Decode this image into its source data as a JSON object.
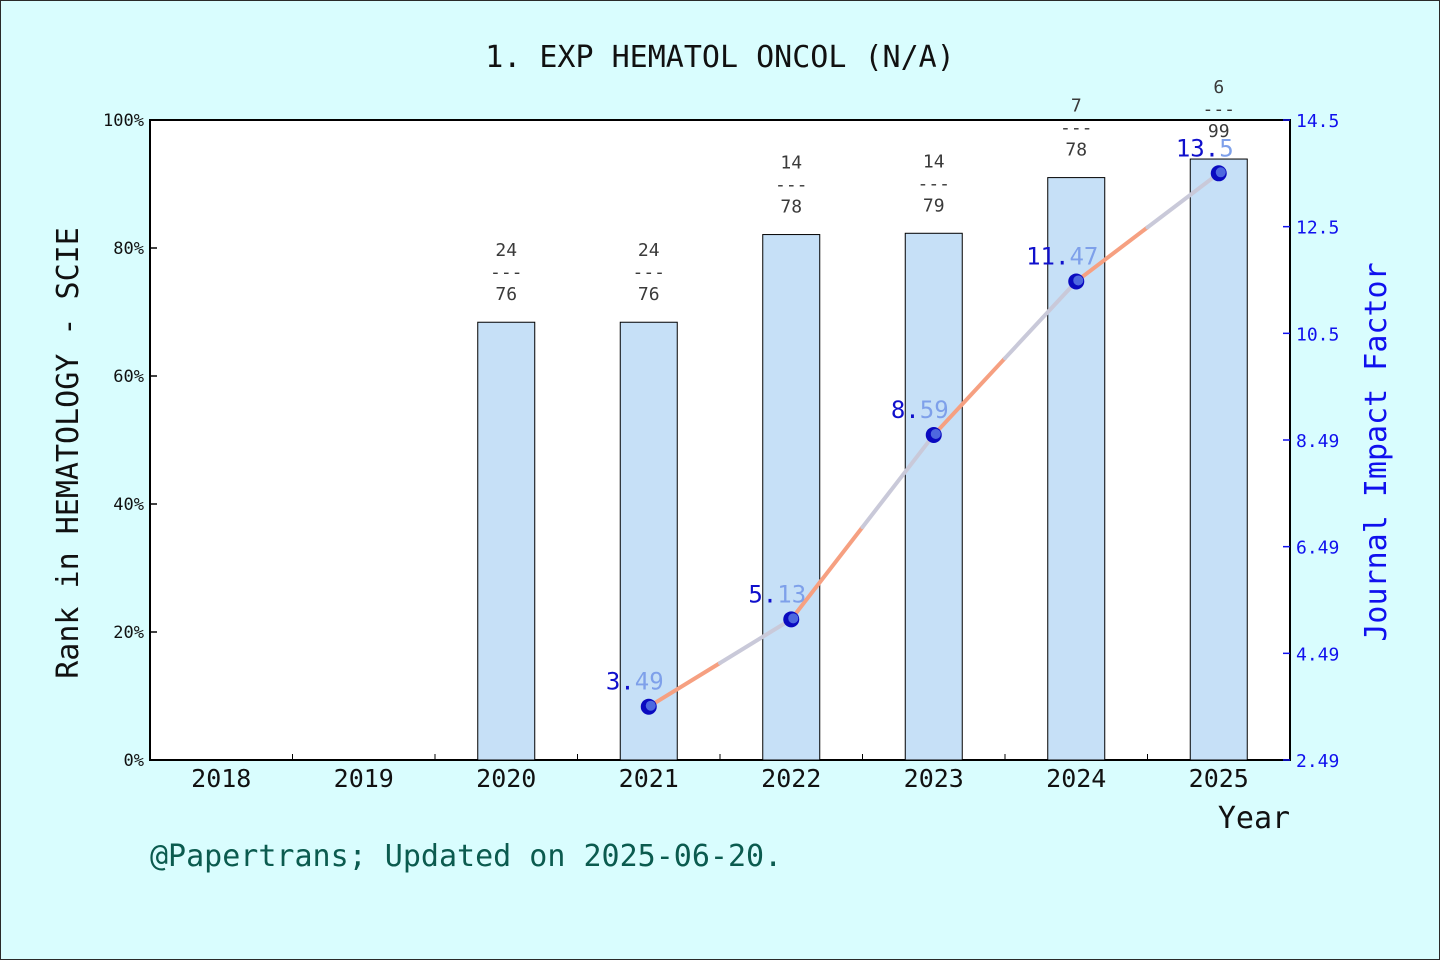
{
  "chart_data": {
    "type": "bar",
    "title": "1. EXP HEMATOL ONCOL (N/A)",
    "xlabel": "Year",
    "ylabel": "Rank in HEMATOLOGY - SCIE",
    "y2label": "Journal Impact Factor",
    "categories": [
      "2018",
      "2019",
      "2020",
      "2021",
      "2022",
      "2023",
      "2024",
      "2025"
    ],
    "ylim": [
      0,
      100
    ],
    "y_ticks": [
      "0%",
      "20%",
      "40%",
      "60%",
      "80%",
      "100%"
    ],
    "y2lim": [
      2.49,
      14.5
    ],
    "y2_ticks": [
      "2.49",
      "4.49",
      "6.49",
      "8.49",
      "10.5",
      "12.5",
      "14.5"
    ],
    "series": [
      {
        "type": "bar",
        "axis": "left",
        "values": [
          null,
          null,
          68.4,
          68.4,
          82.1,
          82.3,
          91.0,
          93.9
        ],
        "labels": [
          null,
          null,
          [
            "24",
            "---",
            "76"
          ],
          [
            "24",
            "---",
            "76"
          ],
          [
            "14",
            "---",
            "78"
          ],
          [
            "14",
            "---",
            "79"
          ],
          [
            "7",
            "---",
            "78"
          ],
          [
            "6",
            "---",
            "99"
          ]
        ],
        "color": "#c6e0f7"
      },
      {
        "type": "line",
        "axis": "right",
        "values": [
          null,
          null,
          null,
          3.49,
          5.13,
          8.59,
          11.47,
          13.5
        ],
        "labels": [
          null,
          null,
          null,
          "3.49",
          "5.13",
          "8.59",
          "11.47",
          "13.5"
        ],
        "color": "#0a0ac0"
      }
    ],
    "grid": false,
    "legend": "none"
  },
  "footer": "@Papertrans; Updated on 2025-06-20."
}
